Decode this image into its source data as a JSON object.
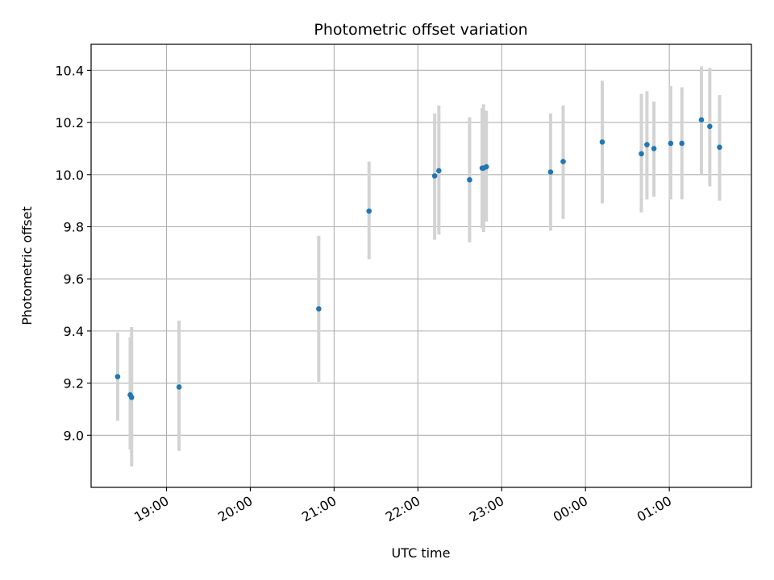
{
  "chart_data": {
    "type": "scatter",
    "title": "Photometric offset variation",
    "xlabel": "UTC time",
    "ylabel": "Photometric offset",
    "x_ticks": [
      "19:00",
      "20:00",
      "21:00",
      "22:00",
      "23:00",
      "00:00",
      "01:00"
    ],
    "x_tick_hours": [
      19,
      20,
      21,
      22,
      23,
      24,
      25
    ],
    "xlim_hours": [
      18.1,
      25.98
    ],
    "y_ticks": [
      "9.0",
      "9.2",
      "9.4",
      "9.6",
      "9.8",
      "10.0",
      "10.2",
      "10.4"
    ],
    "y_tick_values": [
      9.0,
      9.2,
      9.4,
      9.6,
      9.8,
      10.0,
      10.2,
      10.4
    ],
    "ylim": [
      8.8,
      10.5
    ],
    "grid": true,
    "colors": {
      "point": "#1f77b4",
      "errorbar": "#d3d3d3",
      "grid": "#b0b0b0"
    },
    "points": [
      {
        "time": "18:25",
        "y": 9.225,
        "err_low": 9.055,
        "err_high": 9.395
      },
      {
        "time": "18:34",
        "y": 9.155,
        "err_low": 8.945,
        "err_high": 9.375
      },
      {
        "time": "18:35",
        "y": 9.145,
        "err_low": 8.88,
        "err_high": 9.415
      },
      {
        "time": "19:09",
        "y": 9.185,
        "err_low": 8.94,
        "err_high": 9.44
      },
      {
        "time": "20:49",
        "y": 9.485,
        "err_low": 9.205,
        "err_high": 9.765
      },
      {
        "time": "21:25",
        "y": 9.86,
        "err_low": 9.675,
        "err_high": 10.05
      },
      {
        "time": "22:12",
        "y": 9.995,
        "err_low": 9.75,
        "err_high": 10.235
      },
      {
        "time": "22:15",
        "y": 10.015,
        "err_low": 9.77,
        "err_high": 10.265
      },
      {
        "time": "22:37",
        "y": 9.98,
        "err_low": 9.74,
        "err_high": 10.22
      },
      {
        "time": "22:46",
        "y": 10.025,
        "err_low": 9.795,
        "err_high": 10.255
      },
      {
        "time": "22:47",
        "y": 10.025,
        "err_low": 9.78,
        "err_high": 10.27
      },
      {
        "time": "22:49",
        "y": 10.03,
        "err_low": 9.82,
        "err_high": 10.245
      },
      {
        "time": "23:35",
        "y": 10.01,
        "err_low": 9.785,
        "err_high": 10.235
      },
      {
        "time": "23:44",
        "y": 10.05,
        "err_low": 9.83,
        "err_high": 10.265
      },
      {
        "time": "00:12",
        "y": 10.125,
        "err_low": 9.89,
        "err_high": 10.36
      },
      {
        "time": "00:40",
        "y": 10.08,
        "err_low": 9.855,
        "err_high": 10.31
      },
      {
        "time": "00:44",
        "y": 10.115,
        "err_low": 9.905,
        "err_high": 10.32
      },
      {
        "time": "00:49",
        "y": 10.1,
        "err_low": 9.915,
        "err_high": 10.28
      },
      {
        "time": "01:01",
        "y": 10.12,
        "err_low": 9.905,
        "err_high": 10.34
      },
      {
        "time": "01:09",
        "y": 10.12,
        "err_low": 9.905,
        "err_high": 10.335
      },
      {
        "time": "01:23",
        "y": 10.21,
        "err_low": 10.0,
        "err_high": 10.415
      },
      {
        "time": "01:29",
        "y": 10.185,
        "err_low": 9.955,
        "err_high": 10.41
      },
      {
        "time": "01:36",
        "y": 10.105,
        "err_low": 9.9,
        "err_high": 10.305
      }
    ]
  }
}
